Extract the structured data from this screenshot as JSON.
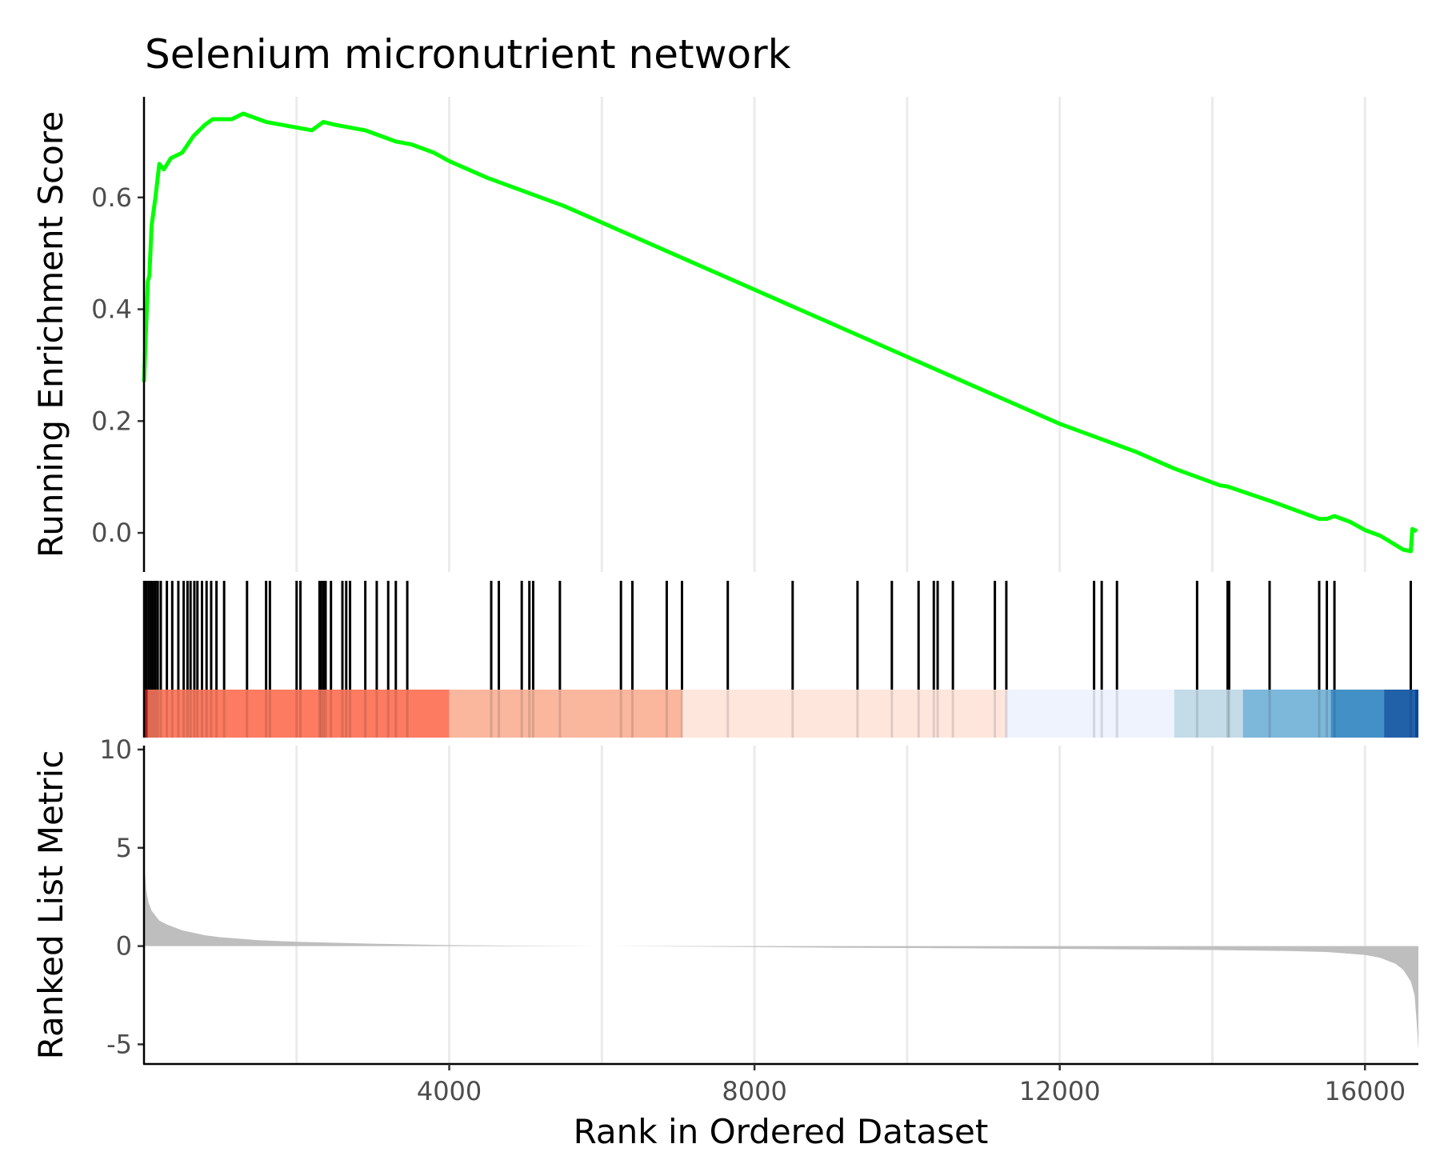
{
  "chart_data": {
    "type": "line",
    "title": "Selenium micronutrient network",
    "xlabel": "Rank in Ordered Dataset",
    "xlim": [
      0,
      16700
    ],
    "x_ticks": [
      4000,
      8000,
      12000,
      16000
    ],
    "x_tick_labels": [
      "4000",
      "8000",
      "12000",
      "16000"
    ],
    "grid": "vertical major and minor lines",
    "panels": [
      {
        "name": "running-enrichment",
        "ylabel": "Running Enrichment Score",
        "ylim": [
          -0.07,
          0.78
        ],
        "y_ticks": [
          0.0,
          0.2,
          0.4,
          0.6
        ],
        "y_tick_labels": [
          "0.0",
          "0.2",
          "0.4",
          "0.6"
        ],
        "line_color": "#00ff00",
        "series": [
          {
            "x": [
              0,
              50,
              70,
              100,
              150,
              200,
              260,
              350,
              500,
              650,
              800,
              900,
              1000,
              1150,
              1300,
              1400,
              1600,
              1800,
              2000,
              2200,
              2350,
              2500,
              2700,
              2900,
              3100,
              3300,
              3500,
              3800,
              4000,
              4500,
              5000,
              5500,
              6000,
              6500,
              7000,
              7500,
              8000,
              8500,
              9000,
              9500,
              10000,
              10500,
              11000,
              11500,
              12000,
              12500,
              13000,
              13500,
              13800,
              14100,
              14200,
              14800,
              15400,
              15500,
              15600,
              15800,
              16000,
              16200,
              16500,
              16600,
              16620,
              16680
            ],
            "y": [
              0.27,
              0.45,
              0.46,
              0.55,
              0.6,
              0.66,
              0.65,
              0.67,
              0.68,
              0.71,
              0.73,
              0.74,
              0.74,
              0.74,
              0.75,
              0.745,
              0.735,
              0.73,
              0.725,
              0.72,
              0.735,
              0.73,
              0.725,
              0.72,
              0.71,
              0.7,
              0.695,
              0.68,
              0.665,
              0.635,
              0.61,
              0.585,
              0.555,
              0.525,
              0.495,
              0.465,
              0.435,
              0.405,
              0.375,
              0.345,
              0.315,
              0.285,
              0.255,
              0.225,
              0.195,
              0.17,
              0.145,
              0.115,
              0.1,
              0.085,
              0.083,
              0.055,
              0.025,
              0.025,
              0.03,
              0.02,
              0.005,
              -0.005,
              -0.03,
              -0.033,
              0.007,
              0.003
            ]
          }
        ]
      },
      {
        "name": "gene-hits",
        "hit_positions": [
          5,
          30,
          60,
          90,
          120,
          150,
          180,
          220,
          300,
          370,
          450,
          520,
          570,
          610,
          660,
          700,
          760,
          820,
          880,
          950,
          1050,
          1350,
          1600,
          1650,
          2000,
          2050,
          2300,
          2320,
          2350,
          2380,
          2450,
          2600,
          2650,
          2700,
          2900,
          3050,
          3200,
          3300,
          3450,
          4550,
          4650,
          4950,
          5050,
          5100,
          5450,
          6250,
          6400,
          6850,
          7050,
          7650,
          8500,
          9350,
          9800,
          10150,
          10350,
          10400,
          10600,
          11150,
          11300,
          12450,
          12550,
          12750,
          13800,
          14200,
          14220,
          14750,
          15400,
          15500,
          15600,
          16600
        ],
        "color_bands": [
          {
            "from": 0,
            "to": 50,
            "color": "#cb181d"
          },
          {
            "from": 50,
            "to": 4000,
            "color": "#fc7b61"
          },
          {
            "from": 4000,
            "to": 7050,
            "color": "#fab79e"
          },
          {
            "from": 7050,
            "to": 11300,
            "color": "#fee6dd"
          },
          {
            "from": 11300,
            "to": 13500,
            "color": "#eff3fe"
          },
          {
            "from": 13500,
            "to": 14400,
            "color": "#c4dce8"
          },
          {
            "from": 14400,
            "to": 15550,
            "color": "#7db7da"
          },
          {
            "from": 15550,
            "to": 16250,
            "color": "#4390c7"
          },
          {
            "from": 16250,
            "to": 16650,
            "color": "#2061a8"
          },
          {
            "from": 16650,
            "to": 16700,
            "color": "#08489b"
          }
        ]
      },
      {
        "name": "ranked-list-metric",
        "ylabel": "Ranked List Metric",
        "ylim": [
          -6,
          10.2
        ],
        "y_ticks": [
          -5,
          0,
          5,
          10
        ],
        "y_tick_labels": [
          "-5",
          "0",
          "5",
          "10"
        ],
        "fill_color": "#bebebe",
        "series": [
          {
            "x": [
              0,
              10,
              30,
              60,
              100,
              200,
              300,
              500,
              800,
              1000,
              1500,
              2000,
              3000,
              4000,
              5000,
              6000,
              7000,
              8000,
              9000,
              10000,
              11000,
              12000,
              13000,
              14000,
              15000,
              15500,
              16000,
              16200,
              16400,
              16500,
              16600,
              16650,
              16680,
              16700
            ],
            "y": [
              4.5,
              3.8,
              2.8,
              2.2,
              1.8,
              1.3,
              1.1,
              0.8,
              0.55,
              0.45,
              0.3,
              0.22,
              0.12,
              0.05,
              0.02,
              0.0,
              -0.02,
              -0.05,
              -0.08,
              -0.1,
              -0.12,
              -0.14,
              -0.17,
              -0.2,
              -0.25,
              -0.3,
              -0.45,
              -0.6,
              -0.9,
              -1.2,
              -1.8,
              -2.5,
              -4.0,
              -5.3
            ]
          }
        ]
      }
    ]
  }
}
